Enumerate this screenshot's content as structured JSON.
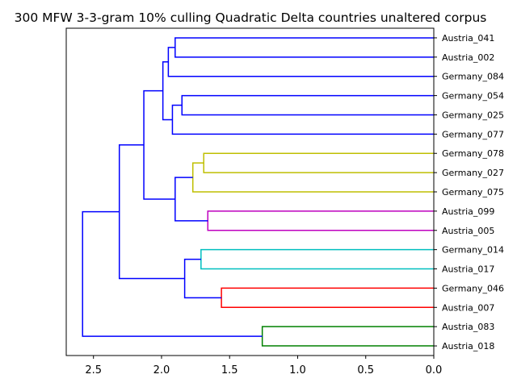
{
  "chart_data": {
    "type": "dendrogram",
    "title": "300 MFW 3-3-gram 10% culling Quadratic Delta countries unaltered corpus",
    "xlabel": "",
    "ylabel": "",
    "orientation": "left",
    "xlim": [
      2.7,
      0.0
    ],
    "x_ticks": [
      {
        "value": 2.5,
        "label": "2.5"
      },
      {
        "value": 2.0,
        "label": "2.0"
      },
      {
        "value": 1.5,
        "label": "1.5"
      },
      {
        "value": 1.0,
        "label": "1.0"
      },
      {
        "value": 0.5,
        "label": "0.5"
      },
      {
        "value": 0.0,
        "label": "0.0"
      }
    ],
    "grid": false,
    "leaves": [
      "Austria_041",
      "Austria_002",
      "Germany_084",
      "Germany_054",
      "Germany_025",
      "Germany_077",
      "Germany_078",
      "Germany_027",
      "Germany_075",
      "Austria_099",
      "Austria_005",
      "Germany_014",
      "Austria_017",
      "Germany_046",
      "Austria_007",
      "Austria_083",
      "Austria_018"
    ],
    "merges": [
      {
        "id": "A",
        "height": 1.9,
        "children": [
          0,
          1
        ],
        "color": "#0000ff"
      },
      {
        "id": "B",
        "height": 1.95,
        "children": [
          "A",
          2
        ],
        "color": "#0000ff"
      },
      {
        "id": "C",
        "height": 1.85,
        "children": [
          3,
          4
        ],
        "color": "#0000ff"
      },
      {
        "id": "D",
        "height": 1.92,
        "children": [
          "C",
          5
        ],
        "color": "#0000ff"
      },
      {
        "id": "E",
        "height": 1.99,
        "children": [
          "B",
          "D"
        ],
        "color": "#0000ff"
      },
      {
        "id": "F",
        "height": 1.69,
        "children": [
          6,
          7
        ],
        "color": "#bfbf00"
      },
      {
        "id": "G",
        "height": 1.77,
        "children": [
          "F",
          8
        ],
        "color": "#bfbf00"
      },
      {
        "id": "H",
        "height": 1.66,
        "children": [
          9,
          10
        ],
        "color": "#bf00bf"
      },
      {
        "id": "I",
        "height": 1.9,
        "children": [
          "G",
          "H"
        ],
        "color": "#0000ff"
      },
      {
        "id": "J",
        "height": 2.13,
        "children": [
          "E",
          "I"
        ],
        "color": "#0000ff"
      },
      {
        "id": "K",
        "height": 1.71,
        "children": [
          11,
          12
        ],
        "color": "#00bfbf"
      },
      {
        "id": "L",
        "height": 1.56,
        "children": [
          13,
          14
        ],
        "color": "#ff0000"
      },
      {
        "id": "M",
        "height": 1.83,
        "children": [
          "K",
          "L"
        ],
        "color": "#0000ff"
      },
      {
        "id": "N",
        "height": 2.31,
        "children": [
          "J",
          "M"
        ],
        "color": "#0000ff"
      },
      {
        "id": "O",
        "height": 1.26,
        "children": [
          15,
          16
        ],
        "color": "#008000"
      },
      {
        "id": "P",
        "height": 2.58,
        "children": [
          "N",
          "O"
        ],
        "color": "#0000ff"
      }
    ]
  }
}
